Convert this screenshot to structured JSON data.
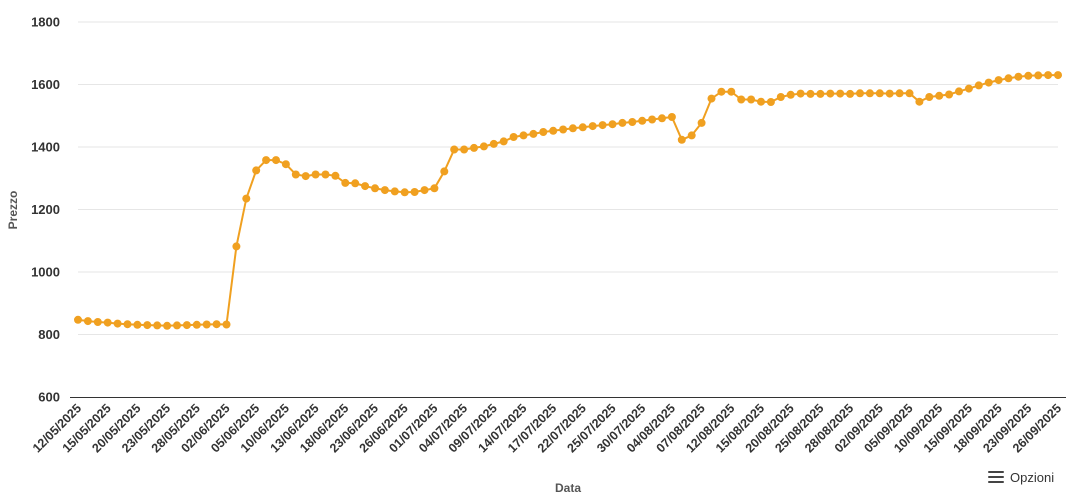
{
  "chart_data": {
    "type": "line",
    "xlabel": "Data",
    "ylabel": "Prezzo",
    "ylim": [
      600,
      1800
    ],
    "yticks": [
      600,
      800,
      1000,
      1200,
      1400,
      1600,
      1800
    ],
    "grid": true,
    "legend": "none",
    "color": "#f0a020",
    "x": [
      "12/05/2025",
      "13/05/2025",
      "14/05/2025",
      "15/05/2025",
      "16/05/2025",
      "19/05/2025",
      "20/05/2025",
      "21/05/2025",
      "22/05/2025",
      "23/05/2025",
      "26/05/2025",
      "27/05/2025",
      "28/05/2025",
      "29/05/2025",
      "30/05/2025",
      "02/06/2025",
      "03/06/2025",
      "04/06/2025",
      "05/06/2025",
      "06/06/2025",
      "09/06/2025",
      "10/06/2025",
      "11/06/2025",
      "12/06/2025",
      "13/06/2025",
      "16/06/2025",
      "17/06/2025",
      "18/06/2025",
      "19/06/2025",
      "20/06/2025",
      "23/06/2025",
      "24/06/2025",
      "25/06/2025",
      "26/06/2025",
      "27/06/2025",
      "30/06/2025",
      "01/07/2025",
      "02/07/2025",
      "03/07/2025",
      "04/07/2025",
      "07/07/2025",
      "08/07/2025",
      "09/07/2025",
      "10/07/2025",
      "11/07/2025",
      "14/07/2025",
      "15/07/2025",
      "16/07/2025",
      "17/07/2025",
      "18/07/2025",
      "21/07/2025",
      "22/07/2025",
      "23/07/2025",
      "24/07/2025",
      "25/07/2025",
      "28/07/2025",
      "29/07/2025",
      "30/07/2025",
      "31/07/2025",
      "01/08/2025",
      "04/08/2025",
      "05/08/2025",
      "06/08/2025",
      "07/08/2025",
      "08/08/2025",
      "11/08/2025",
      "12/08/2025",
      "13/08/2025",
      "14/08/2025",
      "15/08/2025",
      "18/08/2025",
      "19/08/2025",
      "20/08/2025",
      "21/08/2025",
      "22/08/2025",
      "25/08/2025",
      "26/08/2025",
      "27/08/2025",
      "28/08/2025",
      "29/08/2025",
      "01/09/2025",
      "02/09/2025",
      "03/09/2025",
      "04/09/2025",
      "05/09/2025",
      "08/09/2025",
      "09/09/2025",
      "10/09/2025",
      "11/09/2025",
      "12/09/2025",
      "15/09/2025",
      "16/09/2025",
      "17/09/2025",
      "18/09/2025",
      "19/09/2025",
      "22/09/2025",
      "23/09/2025",
      "24/09/2025",
      "25/09/2025",
      "26/09/2025"
    ],
    "xtick_labels": [
      "12/05/2025",
      "15/05/2025",
      "20/05/2025",
      "23/05/2025",
      "28/05/2025",
      "02/06/2025",
      "05/06/2025",
      "10/06/2025",
      "13/06/2025",
      "18/06/2025",
      "23/06/2025",
      "26/06/2025",
      "01/07/2025",
      "04/07/2025",
      "09/07/2025",
      "14/07/2025",
      "17/07/2025",
      "22/07/2025",
      "25/07/2025",
      "30/07/2025",
      "04/08/2025",
      "07/08/2025",
      "12/08/2025",
      "15/08/2025",
      "20/08/2025",
      "25/08/2025",
      "28/08/2025",
      "02/09/2025",
      "05/09/2025",
      "10/09/2025",
      "15/09/2025",
      "18/09/2025",
      "23/09/2025",
      "26/09/2025"
    ],
    "series": [
      {
        "values": [
          847,
          843,
          840,
          838,
          835,
          833,
          831,
          830,
          829,
          828,
          829,
          830,
          831,
          832,
          833,
          832,
          1082,
          1235,
          1325,
          1358,
          1358,
          1345,
          1312,
          1307,
          1312,
          1312,
          1308,
          1285,
          1284,
          1275,
          1268,
          1262,
          1258,
          1255,
          1256,
          1262,
          1268,
          1322,
          1392,
          1392,
          1397,
          1402,
          1410,
          1418,
          1432,
          1437,
          1442,
          1448,
          1452,
          1456,
          1460,
          1463,
          1467,
          1470,
          1473,
          1477,
          1480,
          1484,
          1488,
          1492,
          1496,
          1423,
          1437,
          1477,
          1555,
          1577,
          1577,
          1552,
          1552,
          1545,
          1544,
          1560,
          1567,
          1571,
          1570,
          1570,
          1571,
          1571,
          1570,
          1572,
          1572,
          1572,
          1571,
          1572,
          1572,
          1545,
          1560,
          1564,
          1568,
          1578,
          1587,
          1597,
          1606,
          1614,
          1620,
          1625,
          1628,
          1629,
          1630,
          1630
        ]
      }
    ]
  },
  "toolbar": {
    "options_label": "Opzioni"
  }
}
